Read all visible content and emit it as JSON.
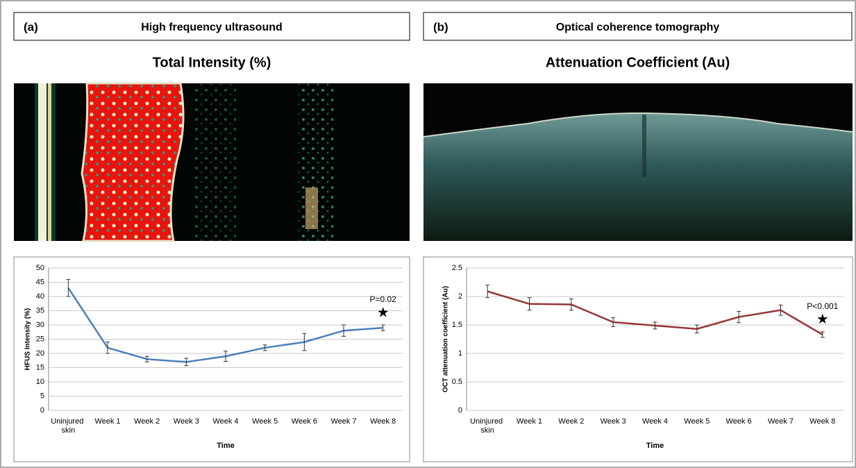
{
  "chart_data": [
    {
      "type": "line",
      "panel_label": "(a)",
      "panel_title": "High frequency ultrasound",
      "title": "Total Intensity (%)",
      "x_label": "Time",
      "y_label": "HFUS Intensity (%)",
      "categories": [
        "Uninjured skin",
        "Week 1",
        "Week 2",
        "Week 3",
        "Week 4",
        "Week 5",
        "Week 6",
        "Week 7",
        "Week 8"
      ],
      "values": [
        43,
        22,
        18,
        17,
        19,
        22,
        24,
        28,
        29
      ],
      "errors": [
        3,
        2,
        1,
        1.3,
        1.8,
        1,
        3,
        2,
        1
      ],
      "color": "#4a7ebb",
      "ylim": [
        0,
        50
      ],
      "yticks": [
        0,
        5,
        10,
        15,
        20,
        25,
        30,
        35,
        40,
        45,
        50
      ],
      "grid": true,
      "annotations": [
        "P=0.02",
        "★"
      ]
    },
    {
      "type": "line",
      "panel_label": "(b)",
      "panel_title": "Optical coherence tomography",
      "title": "Attenuation Coefficient (Au)",
      "x_label": "Time",
      "y_label": "OCT attenuation coefficient (Au)",
      "categories": [
        "Uninjured skin",
        "Week 1",
        "Week 2",
        "Week 3",
        "Week 4",
        "Week 5",
        "Week 6",
        "Week 7",
        "Week 8"
      ],
      "values": [
        2.09,
        1.87,
        1.86,
        1.55,
        1.49,
        1.43,
        1.64,
        1.76,
        1.33
      ],
      "errors": [
        0.11,
        0.11,
        0.1,
        0.08,
        0.06,
        0.07,
        0.1,
        0.09,
        0.05
      ],
      "color": "#953735",
      "ylim": [
        0,
        2.5
      ],
      "yticks": [
        0,
        0.5,
        1,
        1.5,
        2,
        2.5
      ],
      "grid": true,
      "annotations": [
        "P<0.001",
        "★"
      ]
    }
  ]
}
